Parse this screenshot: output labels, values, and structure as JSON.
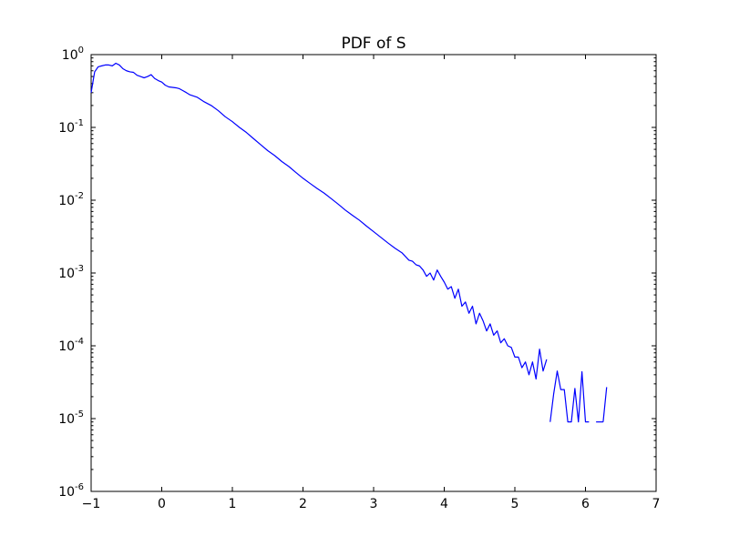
{
  "chart_data": {
    "type": "line",
    "title": "PDF of S",
    "xlabel": "",
    "ylabel": "",
    "xlim": [
      -1,
      7
    ],
    "ylim": [
      1e-06,
      1
    ],
    "yscale": "log",
    "grid": false,
    "legend": "none",
    "line_color": "#0000ff",
    "x_ticks": [
      "−1",
      "0",
      "1",
      "2",
      "3",
      "4",
      "5",
      "6",
      "7"
    ],
    "y_ticks": [
      {
        "base": "10",
        "exp": "0"
      },
      {
        "base": "10",
        "exp": "-1"
      },
      {
        "base": "10",
        "exp": "-2"
      },
      {
        "base": "10",
        "exp": "-3"
      },
      {
        "base": "10",
        "exp": "-4"
      },
      {
        "base": "10",
        "exp": "-5"
      },
      {
        "base": "10",
        "exp": "-6"
      }
    ],
    "segments": [
      {
        "x": [
          -1.0,
          -0.95,
          -0.9,
          -0.85,
          -0.8,
          -0.75,
          -0.7,
          -0.65,
          -0.6,
          -0.55,
          -0.5,
          -0.45,
          -0.4,
          -0.35,
          -0.3,
          -0.25,
          -0.2,
          -0.15,
          -0.1,
          -0.05,
          0.0,
          0.05,
          0.1,
          0.15,
          0.2,
          0.25,
          0.3,
          0.35,
          0.4,
          0.5,
          0.6,
          0.7,
          0.8,
          0.9,
          1.0,
          1.1,
          1.2,
          1.3,
          1.4,
          1.5,
          1.6,
          1.7,
          1.8,
          1.9,
          2.0,
          2.1,
          2.2,
          2.3,
          2.4,
          2.5,
          2.6,
          2.7,
          2.8,
          2.9,
          3.0,
          3.1,
          3.2,
          3.3,
          3.4,
          3.5,
          3.55,
          3.6,
          3.65,
          3.7,
          3.75,
          3.8,
          3.85,
          3.9,
          3.95,
          4.0,
          4.05,
          4.1,
          4.15,
          4.2,
          4.25,
          4.3,
          4.35,
          4.4,
          4.45,
          4.5,
          4.55,
          4.6,
          4.65,
          4.7,
          4.75,
          4.8,
          4.85,
          4.9,
          4.95,
          5.0,
          5.05,
          5.1,
          5.15,
          5.2,
          5.25,
          5.3,
          5.35,
          5.4,
          5.45
        ],
        "y": [
          0.3,
          0.58,
          0.68,
          0.7,
          0.72,
          0.72,
          0.7,
          0.76,
          0.72,
          0.64,
          0.6,
          0.58,
          0.57,
          0.52,
          0.5,
          0.48,
          0.5,
          0.53,
          0.47,
          0.44,
          0.42,
          0.38,
          0.36,
          0.355,
          0.35,
          0.34,
          0.32,
          0.3,
          0.28,
          0.26,
          0.225,
          0.2,
          0.17,
          0.14,
          0.12,
          0.1,
          0.085,
          0.07,
          0.058,
          0.048,
          0.041,
          0.034,
          0.029,
          0.024,
          0.02,
          0.017,
          0.0145,
          0.0125,
          0.0105,
          0.0088,
          0.0073,
          0.0062,
          0.0053,
          0.0044,
          0.0037,
          0.0031,
          0.0026,
          0.0022,
          0.0019,
          0.0015,
          0.00145,
          0.0013,
          0.00125,
          0.0011,
          0.0009,
          0.001,
          0.0008,
          0.0011,
          0.0009,
          0.00075,
          0.0006,
          0.00065,
          0.00045,
          0.0006,
          0.00035,
          0.0004,
          0.00028,
          0.00035,
          0.0002,
          0.00028,
          0.00022,
          0.00016,
          0.0002,
          0.00014,
          0.00016,
          0.00011,
          0.000125,
          0.0001,
          9.5e-05,
          7e-05,
          7e-05,
          5e-05,
          6e-05,
          4e-05,
          6e-05,
          3.5e-05,
          9e-05,
          4.5e-05,
          6.5e-05
        ]
      },
      {
        "x": [
          5.5,
          5.55,
          5.6,
          5.65,
          5.7,
          5.75,
          5.8,
          5.85,
          5.9,
          5.95,
          6.0,
          6.05
        ],
        "y": [
          9e-06,
          2.2e-05,
          4.5e-05,
          2.5e-05,
          2.5e-05,
          9e-06,
          9e-06,
          2.6e-05,
          9e-06,
          4.4e-05,
          9e-06,
          9e-06
        ]
      },
      {
        "x": [
          6.15,
          6.25
        ],
        "y": [
          9e-06,
          9e-06
        ]
      },
      {
        "x": [
          6.25,
          6.3
        ],
        "y": [
          9e-06,
          2.7e-05
        ]
      }
    ]
  }
}
